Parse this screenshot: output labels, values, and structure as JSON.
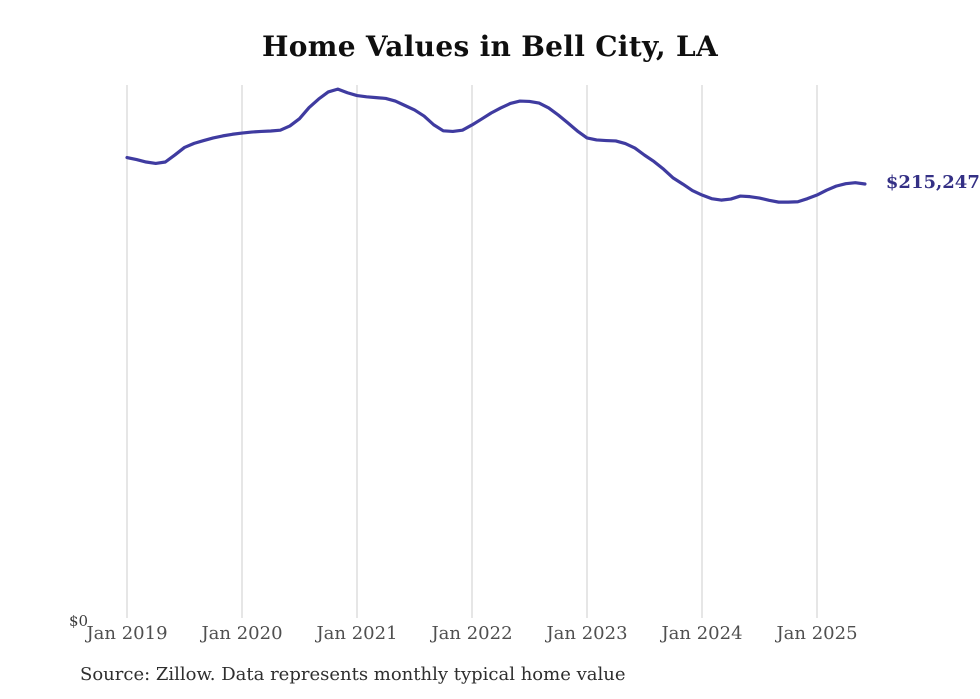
{
  "chart_data": {
    "type": "line",
    "title": "Home Values in Bell City, LA",
    "x": [
      "2019-01",
      "2019-02",
      "2019-03",
      "2019-04",
      "2019-05",
      "2019-06",
      "2019-07",
      "2019-08",
      "2019-09",
      "2019-10",
      "2019-11",
      "2019-12",
      "2020-01",
      "2020-02",
      "2020-03",
      "2020-04",
      "2020-05",
      "2020-06",
      "2020-07",
      "2020-08",
      "2020-09",
      "2020-10",
      "2020-11",
      "2020-12",
      "2021-01",
      "2021-02",
      "2021-03",
      "2021-04",
      "2021-05",
      "2021-06",
      "2021-07",
      "2021-08",
      "2021-09",
      "2021-10",
      "2021-11",
      "2021-12",
      "2022-01",
      "2022-02",
      "2022-03",
      "2022-04",
      "2022-05",
      "2022-06",
      "2022-07",
      "2022-08",
      "2022-09",
      "2022-10",
      "2022-11",
      "2022-12",
      "2023-01",
      "2023-02",
      "2023-03",
      "2023-04",
      "2023-05",
      "2023-06",
      "2023-07",
      "2023-08",
      "2023-09",
      "2023-10",
      "2023-11",
      "2023-12",
      "2024-01",
      "2024-02",
      "2024-03",
      "2024-04",
      "2024-05",
      "2024-06",
      "2024-07",
      "2024-08",
      "2024-09",
      "2024-10",
      "2024-11",
      "2024-12",
      "2025-01",
      "2025-02",
      "2025-03",
      "2025-04",
      "2025-05",
      "2025-06"
    ],
    "series": [
      {
        "name": "Monthly typical home value",
        "values": [
          228300,
          227300,
          226100,
          225400,
          226100,
          229600,
          233300,
          235300,
          236700,
          238000,
          239000,
          239800,
          240400,
          240900,
          241200,
          241400,
          241800,
          243900,
          247500,
          253000,
          257200,
          260700,
          262100,
          260300,
          258900,
          258300,
          257900,
          257500,
          256200,
          254000,
          251800,
          248800,
          244500,
          241500,
          241200,
          241800,
          244400,
          247300,
          250300,
          252800,
          255000,
          256200,
          256000,
          255200,
          252800,
          249300,
          245400,
          241400,
          238000,
          237000,
          236700,
          236500,
          235200,
          233000,
          229500,
          226300,
          222500,
          218200,
          215200,
          212000,
          209800,
          208000,
          207300,
          207800,
          209300,
          209000,
          208300,
          207200,
          206300,
          206300,
          206500,
          208000,
          209800,
          212200,
          214200,
          215400,
          215900,
          215247
        ]
      }
    ],
    "x_tick_labels": [
      "Jan 2019",
      "Jan 2020",
      "Jan 2021",
      "Jan 2022",
      "Jan 2023",
      "Jan 2024",
      "Jan 2025"
    ],
    "y_axis_zero_label": "$0",
    "ylim": [
      0,
      264000
    ],
    "grid": "vertical-only",
    "legend": "none",
    "end_label": "$215,247",
    "latest_value": 215247,
    "line_color": "#3f3ba0",
    "label_color": "#343085",
    "grid_color": "#cccccc",
    "source": "Source: Zillow. Data represents monthly typical home value"
  }
}
